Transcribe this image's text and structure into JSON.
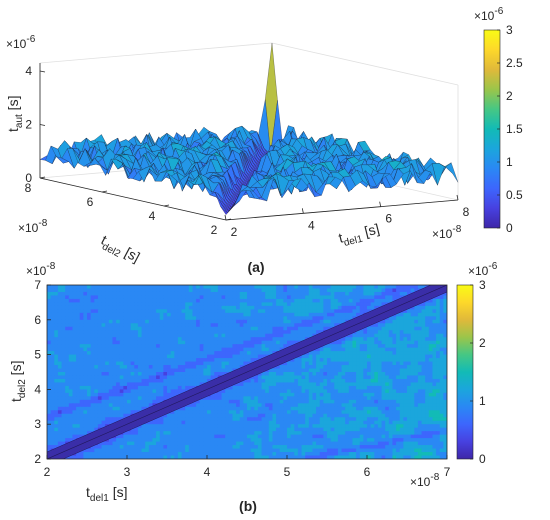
{
  "figure": {
    "panel_a_label": "(a)",
    "panel_b_label": "(b)"
  },
  "chart_data": [
    {
      "type": "surface",
      "panel": "(a)",
      "x": {
        "label_main": "t",
        "label_sub": "del1",
        "unit": "[s]",
        "scale_label": "×10",
        "scale_exp": "-8",
        "ticks": [
          "2",
          "4",
          "6",
          "8"
        ],
        "range": [
          2,
          8
        ]
      },
      "y": {
        "label_main": "t",
        "label_sub": "del2",
        "unit": "[s]",
        "scale_label": "×10",
        "scale_exp": "-8",
        "ticks": [
          "2",
          "4",
          "6",
          "8"
        ],
        "range": [
          2,
          8
        ]
      },
      "z": {
        "label_main": "t",
        "label_sub": "aut",
        "unit": "[s]",
        "scale_label": "×10",
        "scale_exp": "-6",
        "ticks": [
          "0",
          "2",
          "4"
        ],
        "range": [
          0,
          4
        ]
      },
      "colorbar": {
        "scale_label": "×10",
        "scale_exp": "-6",
        "ticks": [
          "0",
          "0.5",
          "1",
          "1.5",
          "2",
          "2.5",
          "3"
        ],
        "range": [
          0,
          3
        ]
      },
      "colormap": [
        "#3e26a8",
        "#4741e0",
        "#3d66fd",
        "#2a88f4",
        "#1ba6dc",
        "#12bbb6",
        "#46c784",
        "#9bc54a",
        "#e0b93a",
        "#fdd82a",
        "#f9fb15"
      ],
      "features": {
        "diagonal_valley": "t_del1 = t_del2",
        "peak_value": 4.3
      }
    },
    {
      "type": "contour",
      "panel": "(b)",
      "x": {
        "label_main": "t",
        "label_sub": "del1",
        "unit": "[s]",
        "scale_label": "×10",
        "scale_exp": "-8",
        "ticks": [
          "2",
          "3",
          "4",
          "5",
          "6",
          "7"
        ],
        "range": [
          2,
          7
        ]
      },
      "y": {
        "label_main": "t",
        "label_sub": "del2",
        "unit": "[s]",
        "scale_label": "×10",
        "scale_exp": "-8",
        "ticks": [
          "2",
          "3",
          "4",
          "5",
          "6",
          "7"
        ],
        "range": [
          2,
          7
        ]
      },
      "colorbar": {
        "scale_label": "×10",
        "scale_exp": "-6",
        "ticks": [
          "0",
          "1",
          "2",
          "3"
        ],
        "range": [
          0,
          3
        ]
      },
      "colormap": [
        "#3e26a8",
        "#4741e0",
        "#3d66fd",
        "#2a88f4",
        "#1ba6dc",
        "#12bbb6",
        "#46c784",
        "#9bc54a",
        "#e0b93a",
        "#fdd82a",
        "#f9fb15"
      ],
      "features": {
        "diagonal_valley": "t_del1 = t_del2"
      }
    }
  ]
}
